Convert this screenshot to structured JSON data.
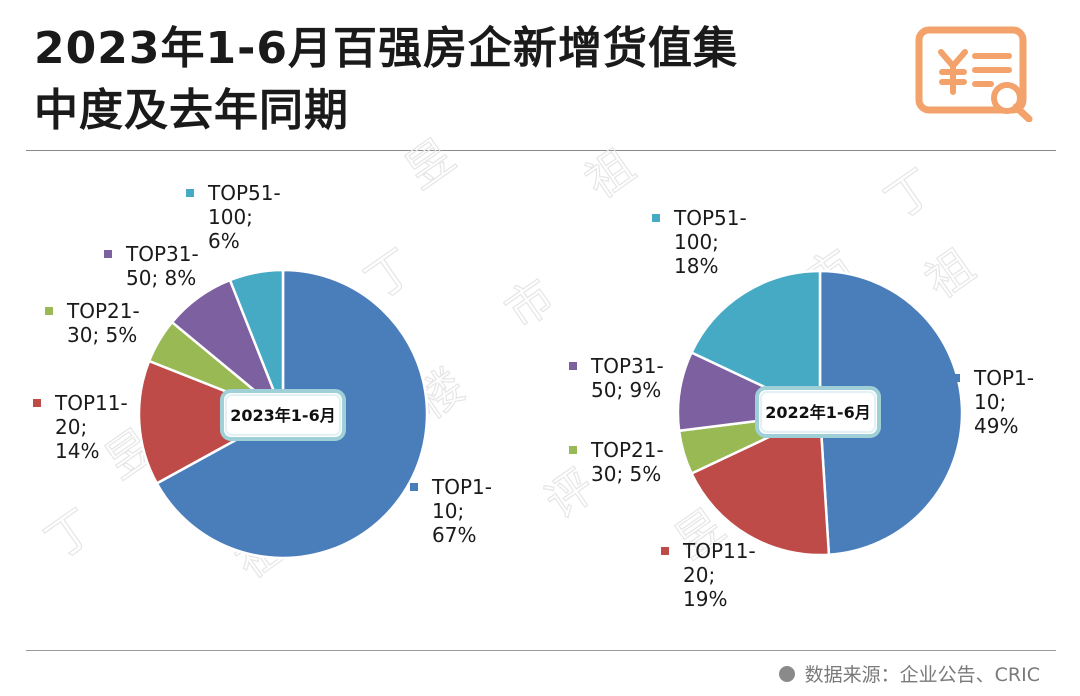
{
  "title_line1": "2023年1-6月百强房企新增货值集",
  "title_line2": "中度及去年同期",
  "source": {
    "text": "数据来源：企业公告、CRIC"
  },
  "watermark": [
    "丁",
    "祖",
    "昱",
    "评",
    "楼",
    "市"
  ],
  "chart_data": [
    {
      "type": "pie",
      "center_label": "2023年1-6月",
      "slices": [
        {
          "name": "TOP1-10",
          "value": 67,
          "color": "#4a7ebb",
          "label_lines": [
            "TOP1-",
            "10;",
            "67%"
          ]
        },
        {
          "name": "TOP11-20",
          "value": 14,
          "color": "#be4b48",
          "label_lines": [
            "TOP11-",
            "20;",
            "14%"
          ]
        },
        {
          "name": "TOP21-30",
          "value": 5,
          "color": "#98b954",
          "label_lines": [
            "TOP21-",
            "30; 5%"
          ]
        },
        {
          "name": "TOP31-50",
          "value": 8,
          "color": "#7d60a0",
          "label_lines": [
            "TOP31-",
            "50; 8%"
          ]
        },
        {
          "name": "TOP51-100",
          "value": 6,
          "color": "#46aac5",
          "label_lines": [
            "TOP51-",
            "100;",
            "6%"
          ]
        }
      ]
    },
    {
      "type": "pie",
      "center_label": "2022年1-6月",
      "slices": [
        {
          "name": "TOP1-10",
          "value": 49,
          "color": "#4a7ebb",
          "label_lines": [
            "TOP1-",
            "10;",
            "49%"
          ]
        },
        {
          "name": "TOP11-20",
          "value": 19,
          "color": "#be4b48",
          "label_lines": [
            "TOP11-",
            "20;",
            "19%"
          ]
        },
        {
          "name": "TOP21-30",
          "value": 5,
          "color": "#98b954",
          "label_lines": [
            "TOP21-",
            "30; 5%"
          ]
        },
        {
          "name": "TOP31-50",
          "value": 9,
          "color": "#7d60a0",
          "label_lines": [
            "TOP31-",
            "50; 9%"
          ]
        },
        {
          "name": "TOP51-100",
          "value": 18,
          "color": "#46aac5",
          "label_lines": [
            "TOP51-",
            "100;",
            "18%"
          ]
        }
      ]
    }
  ]
}
